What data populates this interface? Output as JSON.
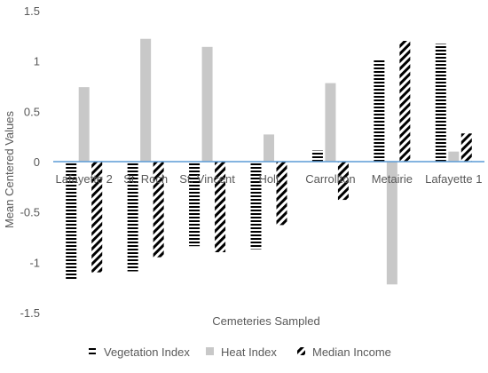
{
  "chart_data": {
    "type": "bar",
    "title": "",
    "xlabel": "Cemeteries Sampled",
    "ylabel": "Mean Centered Values",
    "ylim": [
      -1.5,
      1.5
    ],
    "yticks": [
      -1.5,
      -1,
      -0.5,
      0,
      0.5,
      1,
      1.5
    ],
    "ytick_labels": [
      "-1.5",
      "-1",
      "-0.5",
      "0",
      "0.5",
      "1",
      "1.5"
    ],
    "grid": false,
    "legend_position": "bottom",
    "categories": [
      "Lafayette 2",
      "St. Roch",
      "St. Vincent",
      "Holt",
      "Carrollton",
      "Metairie",
      "Lafayette 1"
    ],
    "series": [
      {
        "name": "Vegetation Index",
        "pattern": "horizontal-lines",
        "color": "#000000",
        "values": [
          -1.17,
          -1.09,
          -0.84,
          -0.87,
          0.11,
          1.02,
          1.17
        ]
      },
      {
        "name": "Heat Index",
        "pattern": "solid",
        "color": "#c8c8c8",
        "values": [
          0.74,
          1.22,
          1.14,
          0.27,
          0.78,
          -1.22,
          0.1
        ]
      },
      {
        "name": "Median Income",
        "pattern": "diagonal-lines",
        "color": "#000000",
        "values": [
          -1.1,
          -0.95,
          -0.9,
          -0.63,
          -0.38,
          1.2,
          0.28
        ]
      }
    ],
    "colors": {
      "zero_line": "#5b9bd5",
      "text": "#595959"
    }
  }
}
